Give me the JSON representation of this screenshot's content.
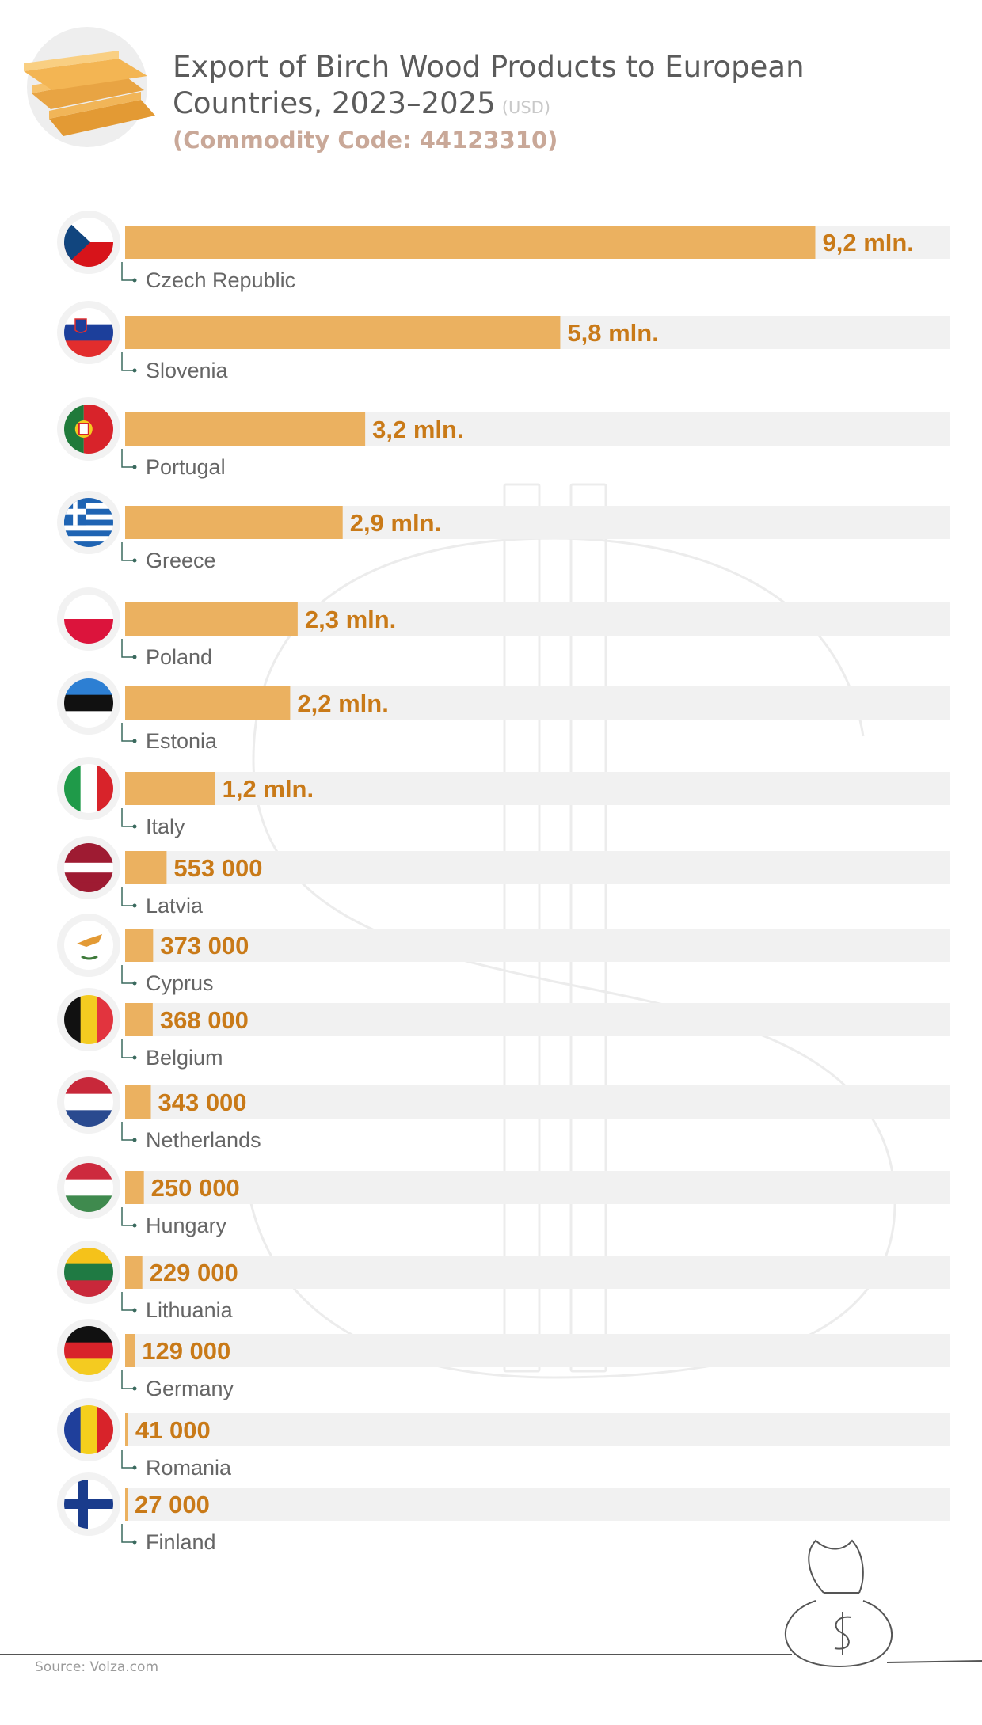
{
  "header": {
    "title": "Export of Birch Wood Products to European Countries, 2023–2025",
    "unit": "(USD)",
    "subtitle": "(Commodity Code: 44123310)"
  },
  "footer": {
    "source": "Source: Volza.com"
  },
  "chart_data": {
    "type": "bar",
    "orientation": "horizontal",
    "title": "Export of Birch Wood Products to European Countries, 2023–2025",
    "unit": "USD",
    "xlim": [
      0,
      11000000
    ],
    "grid": false,
    "legend": "none",
    "categories": [
      "Czech Republic",
      "Slovenia",
      "Portugal",
      "Greece",
      "Poland",
      "Estonia",
      "Italy",
      "Latvia",
      "Cyprus",
      "Belgium",
      "Netherlands",
      "Hungary",
      "Lithuania",
      "Germany",
      "Romania",
      "Finland"
    ],
    "values": [
      9200000,
      5800000,
      3200000,
      2900000,
      2300000,
      2200000,
      1200000,
      553000,
      373000,
      368000,
      343000,
      250000,
      229000,
      129000,
      41000,
      27000
    ],
    "value_labels": [
      "9,2 mln.",
      "5,8 mln.",
      "3,2 mln.",
      "2,9 mln.",
      "2,3 mln.",
      "2,2 mln.",
      "1,2 mln.",
      "553 000",
      "373 000",
      "368 000",
      "343 000",
      "250 000",
      "229 000",
      "129 000",
      "41 000",
      "27 000"
    ],
    "flag_icons": [
      "flag-czech-republic-icon",
      "flag-slovenia-icon",
      "flag-portugal-icon",
      "flag-greece-icon",
      "flag-poland-icon",
      "flag-estonia-icon",
      "flag-italy-icon",
      "flag-latvia-icon",
      "flag-cyprus-icon",
      "flag-belgium-icon",
      "flag-netherlands-icon",
      "flag-hungary-icon",
      "flag-lithuania-icon",
      "flag-germany-icon",
      "flag-romania-icon",
      "flag-finland-icon"
    ]
  },
  "colors": {
    "bar": "#ebb160",
    "track": "#f1f1f1",
    "value_label": "#c97a18",
    "country_label": "#666666",
    "connector": "#3a6a5e"
  }
}
